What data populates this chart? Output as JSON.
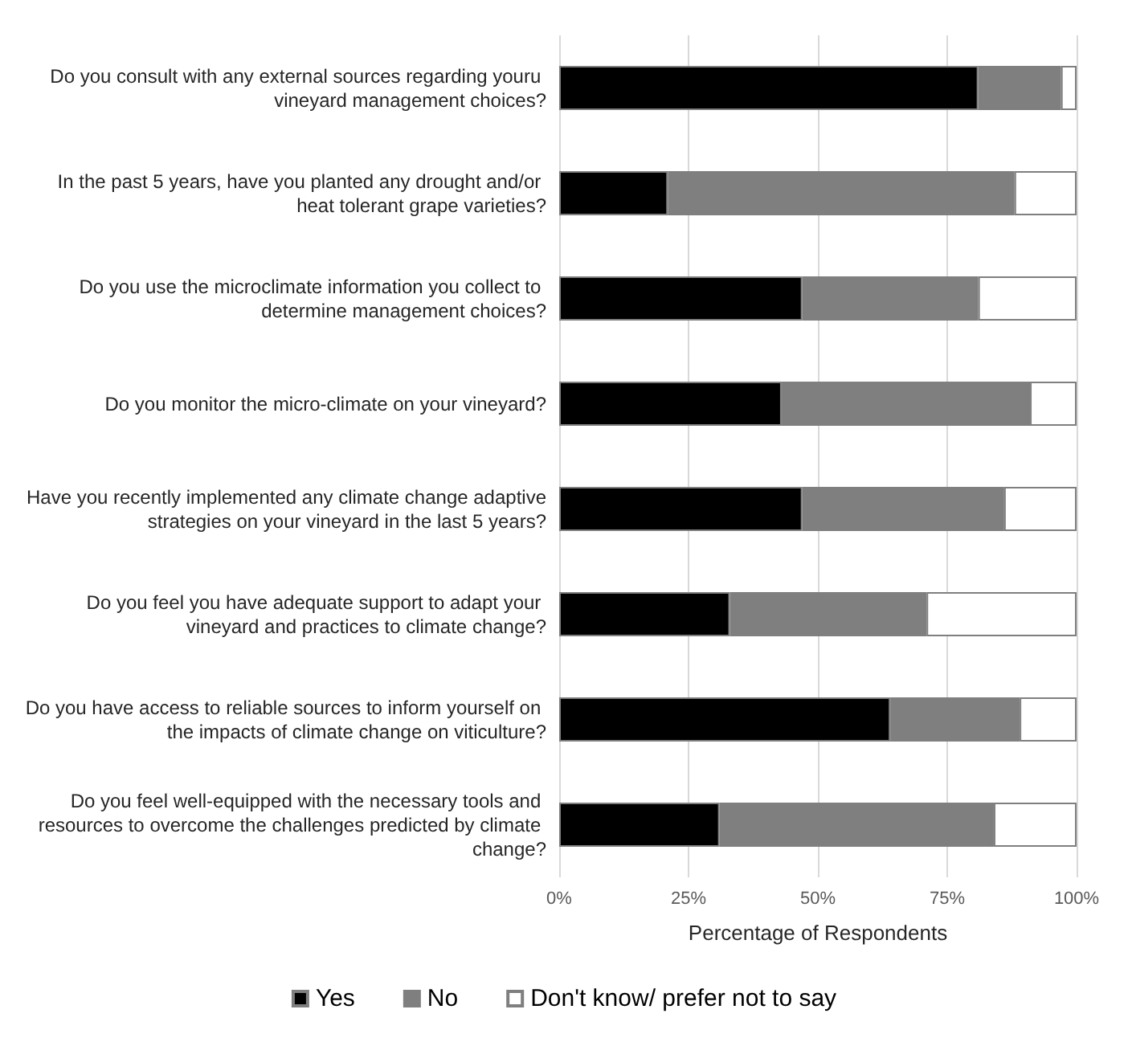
{
  "chart_data": {
    "type": "bar",
    "orientation": "horizontal",
    "stacked": true,
    "xlabel": "Percentage of Respondents",
    "categories": [
      "Do you consult with any external sources regarding youru vineyard management choices?",
      "In the past 5 years, have you planted any drought and/or heat tolerant grape varieties?",
      "Do you use the microclimate information you collect to determine management choices?",
      "Do you monitor the micro-climate on your vineyard?",
      "Have you recently implemented any climate change adaptive strategies on your vineyard in the last 5 years?",
      "Do you feel you have adequate support to adapt your vineyard and practices to climate change?",
      "Do you have access to reliable sources to inform yourself on the impacts of climate change on viticulture?",
      "Do you feel well-equipped with the necessary tools and resources to overcome the challenges predicted by climate change?"
    ],
    "series": [
      {
        "name": "Yes",
        "color": "#000000",
        "values": [
          81,
          21,
          47,
          43,
          47,
          33,
          64,
          31
        ]
      },
      {
        "name": "No",
        "color": "#7f7f7f",
        "values": [
          16,
          67,
          34,
          48,
          39,
          38,
          25,
          53
        ]
      },
      {
        "name": "Don't know/ prefer not to say",
        "color": "#ffffff",
        "values": [
          3,
          12,
          19,
          9,
          14,
          29,
          11,
          16
        ]
      }
    ],
    "xlim": [
      0,
      100
    ],
    "xticks": [
      {
        "value": 0,
        "label": "0%"
      },
      {
        "value": 25,
        "label": "25%"
      },
      {
        "value": 50,
        "label": "50%"
      },
      {
        "value": 75,
        "label": "75%"
      },
      {
        "value": 100,
        "label": "100%"
      }
    ],
    "grid": "x",
    "legend": "bottom"
  }
}
